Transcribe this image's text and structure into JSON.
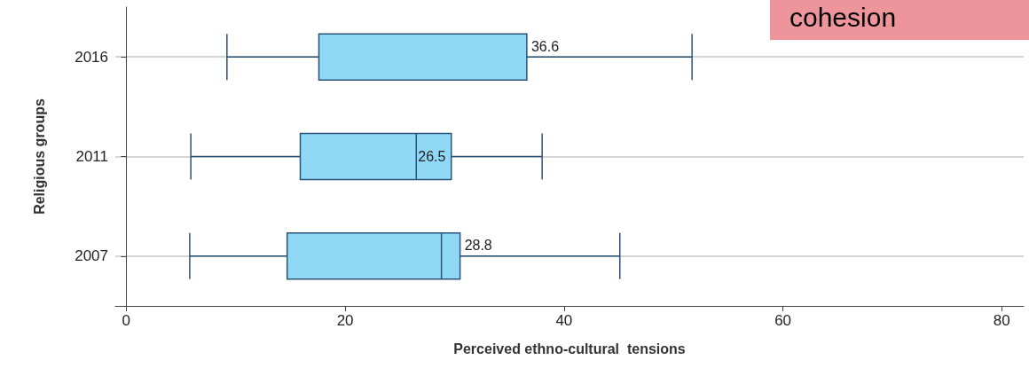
{
  "chart_data": {
    "type": "box",
    "orientation": "horizontal",
    "xlabel": "Perceived ethno-cultural  tensions",
    "ylabel": "Religious groups",
    "categories": [
      "2016",
      "2011",
      "2007"
    ],
    "series": [
      {
        "color": "#8fd8f6",
        "boxes": [
          {
            "low": 9.2,
            "q1": 17.6,
            "median": 36.6,
            "q3": 36.6,
            "high": 51.7
          },
          {
            "low": 5.9,
            "q1": 15.9,
            "median": 26.5,
            "q3": 29.7,
            "high": 38.0
          },
          {
            "low": 5.8,
            "q1": 14.7,
            "median": 28.8,
            "q3": 30.5,
            "high": 45.1
          }
        ],
        "value_labels": [
          "36.6",
          "26.5",
          "28.8"
        ]
      }
    ],
    "xlim": [
      -1,
      82
    ],
    "xticks": [
      0,
      20,
      40,
      60,
      80
    ],
    "grid": "y",
    "annotations": [
      "cohesion"
    ]
  }
}
